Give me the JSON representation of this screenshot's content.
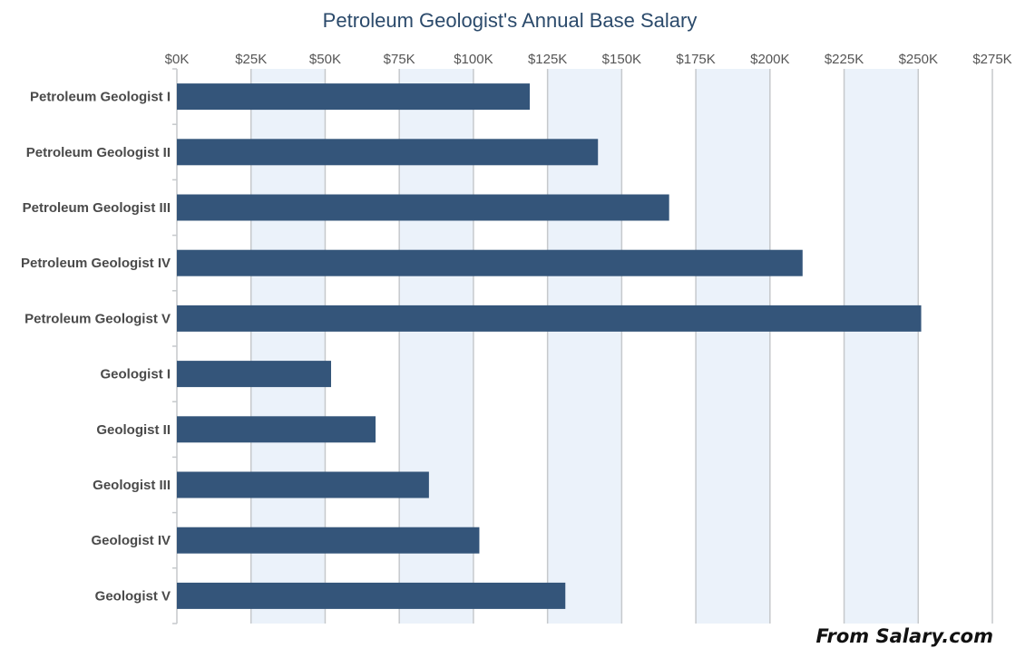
{
  "chart_data": {
    "type": "bar",
    "orientation": "horizontal",
    "title": "Petroleum Geologist's Annual Base Salary",
    "xlabel": "",
    "ylabel": "",
    "categories": [
      "Petroleum Geologist I",
      "Petroleum Geologist II",
      "Petroleum Geologist III",
      "Petroleum Geologist IV",
      "Petroleum Geologist V",
      "Geologist I",
      "Geologist II",
      "Geologist III",
      "Geologist IV",
      "Geologist V"
    ],
    "values": [
      119000,
      142000,
      166000,
      211000,
      251000,
      52000,
      67000,
      85000,
      102000,
      131000
    ],
    "xlim": [
      0,
      275000
    ],
    "x_ticks": [
      "$0K",
      "$25K",
      "$50K",
      "$75K",
      "$100K",
      "$125K",
      "$150K",
      "$175K",
      "$200K",
      "$225K",
      "$250K",
      "$275K"
    ],
    "x_axis_position": "top",
    "grid": true,
    "alternating_bands": true,
    "bar_color": "#34557a",
    "band_color": "#ebf2fa",
    "grid_color": "#c6c9cc"
  },
  "source_label": "From Salary.com"
}
